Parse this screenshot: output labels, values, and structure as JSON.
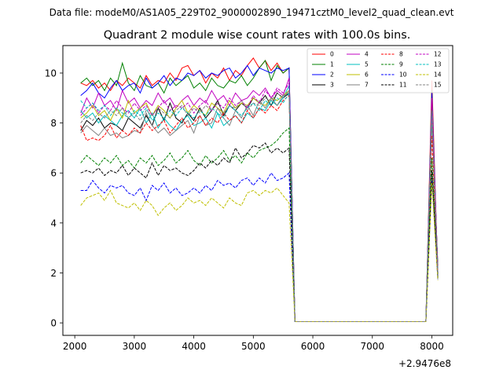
{
  "chart_data": {
    "type": "line",
    "suptitle": "Data file: modeM0/AS1A05_229T02_9000002890_19471cztM0_level2_quad_clean.evt",
    "title": "Quadrant 2 module wise count rates with 100.0s bins.",
    "xlabel": "",
    "ylabel": "",
    "x_offset_label": "+2.9476e8",
    "xlim": [
      1800,
      8350
    ],
    "ylim": [
      -0.5,
      11.1
    ],
    "x_ticks": [
      2000,
      3000,
      4000,
      5000,
      6000,
      7000,
      8000
    ],
    "x_tick_labels": [
      "2000",
      "3000",
      "4000",
      "5000",
      "6000",
      "7000",
      "8000"
    ],
    "y_ticks": [
      0,
      2,
      4,
      6,
      8,
      10
    ],
    "y_tick_labels": [
      "0",
      "2",
      "4",
      "6",
      "8",
      "10"
    ],
    "grid": false,
    "legend_position": "top-right",
    "x": [
      2100,
      2200,
      2300,
      2400,
      2500,
      2600,
      2700,
      2800,
      2900,
      3000,
      3100,
      3200,
      3300,
      3400,
      3500,
      3600,
      3700,
      3800,
      3900,
      4000,
      4100,
      4200,
      4300,
      4400,
      4500,
      4600,
      4700,
      4800,
      4900,
      5000,
      5100,
      5200,
      5300,
      5400,
      5500,
      5600,
      5700,
      5800,
      5900,
      6000,
      6100,
      6200,
      6300,
      6400,
      6500,
      6600,
      6700,
      6800,
      6900,
      7000,
      7100,
      7200,
      7300,
      7400,
      7500,
      7600,
      7700,
      7800,
      7900,
      8000,
      8100
    ],
    "series": [
      {
        "name": "0",
        "color": "#ff0000",
        "dash": "solid",
        "head": [
          9.6,
          9.5,
          9.7,
          9.4,
          9.6,
          9.3,
          9.7,
          9.5,
          9.8,
          9.6,
          9.4,
          9.9,
          9.5,
          9.7,
          9.6,
          10.0,
          9.7,
          10.2,
          10.3,
          9.9,
          10.1,
          9.6,
          10.0,
          9.8,
          10.2,
          9.7,
          10.1,
          9.9,
          10.3,
          10.6,
          10.2,
          10.5,
          10.1,
          10.4,
          10.0
        ],
        "tail": [
          10.2,
          0.05,
          9.7,
          1.9
        ]
      },
      {
        "name": "1",
        "color": "#008000",
        "dash": "solid",
        "head": [
          9.6,
          9.8,
          9.5,
          9.7,
          9.3,
          9.8,
          9.5,
          10.4,
          9.6,
          9.3,
          9.9,
          9.5,
          9.4,
          9.6,
          9.2,
          9.8,
          9.5,
          9.7,
          9.9,
          9.4,
          9.6,
          9.3,
          9.8,
          9.5,
          9.4,
          9.7,
          9.6,
          9.9,
          9.5,
          9.8,
          10.2,
          10.5,
          9.7,
          10.3,
          10.0
        ],
        "tail": [
          10.2,
          0.05,
          9.3,
          1.8
        ]
      },
      {
        "name": "2",
        "color": "#0000ff",
        "dash": "solid",
        "head": [
          9.1,
          9.3,
          9.6,
          9.2,
          9.0,
          9.4,
          9.7,
          9.3,
          9.5,
          9.6,
          9.2,
          9.8,
          9.4,
          9.6,
          9.9,
          9.5,
          9.8,
          9.7,
          10.0,
          9.9,
          10.1,
          9.8,
          10.0,
          9.9,
          10.1,
          10.2,
          9.8,
          10.0,
          10.3,
          9.9,
          10.2,
          10.1,
          10.0,
          10.2,
          10.1
        ],
        "tail": [
          10.2,
          0.05,
          9.2,
          2.0
        ]
      },
      {
        "name": "3",
        "color": "#000000",
        "dash": "solid",
        "head": [
          7.7,
          8.1,
          7.9,
          8.2,
          7.8,
          8.0,
          7.9,
          7.7,
          8.2,
          8.0,
          7.8,
          8.3,
          7.9,
          8.6,
          8.1,
          8.8,
          8.2,
          8.0,
          8.4,
          8.1,
          8.6,
          8.2,
          8.5,
          8.9,
          8.3,
          8.7,
          8.5,
          8.8,
          8.6,
          9.0,
          8.8,
          9.1,
          8.7,
          9.2,
          9.0
        ],
        "tail": [
          9.2,
          0.05,
          8.2,
          2.3
        ]
      },
      {
        "name": "4",
        "color": "#c000c0",
        "dash": "solid",
        "head": [
          8.4,
          9.0,
          8.6,
          9.2,
          8.7,
          8.9,
          8.5,
          9.3,
          8.8,
          9.0,
          8.6,
          8.9,
          8.7,
          9.2,
          8.8,
          9.0,
          8.6,
          8.9,
          9.1,
          8.7,
          9.0,
          8.8,
          9.3,
          8.9,
          9.1,
          8.7,
          9.2,
          8.9,
          9.0,
          9.3,
          9.1,
          9.4,
          9.0,
          9.3,
          9.1
        ],
        "tail": [
          9.8,
          0.05,
          9.0,
          2.0
        ]
      },
      {
        "name": "5",
        "color": "#00bfbf",
        "dash": "solid",
        "head": [
          8.5,
          8.2,
          8.4,
          8.0,
          8.3,
          8.1,
          7.9,
          8.3,
          8.5,
          8.2,
          8.6,
          8.0,
          8.4,
          7.8,
          8.2,
          7.9,
          7.7,
          8.1,
          8.3,
          7.9,
          8.0,
          8.2,
          7.8,
          8.4,
          7.9,
          8.1,
          8.3,
          8.0,
          8.4,
          8.2,
          8.6,
          8.5,
          8.9,
          8.7,
          9.0
        ],
        "tail": [
          9.5,
          0.05,
          8.5,
          2.0
        ]
      },
      {
        "name": "6",
        "color": "#bfbf00",
        "dash": "solid",
        "head": [
          8.2,
          8.4,
          8.7,
          8.3,
          8.5,
          8.1,
          8.6,
          8.2,
          8.9,
          8.4,
          8.6,
          8.8,
          8.3,
          8.7,
          8.5,
          8.2,
          8.6,
          8.9,
          8.4,
          8.7,
          8.5,
          8.3,
          8.8,
          8.6,
          8.4,
          8.9,
          8.6,
          8.8,
          8.7,
          9.0,
          8.8,
          8.7,
          9.0,
          8.9,
          9.1
        ],
        "tail": [
          9.3,
          0.05,
          8.6,
          2.0
        ]
      },
      {
        "name": "7",
        "color": "#808080",
        "dash": "solid",
        "head": [
          7.6,
          7.9,
          7.7,
          7.5,
          7.8,
          7.5,
          7.6,
          7.4,
          7.5,
          7.7,
          7.6,
          8.4,
          7.9,
          7.6,
          7.8,
          7.5,
          7.7,
          7.9,
          8.1,
          7.6,
          8.3,
          7.9,
          8.0,
          8.6,
          8.2,
          7.9,
          8.5,
          8.2,
          8.7,
          8.3,
          8.9,
          8.6,
          9.0,
          8.7,
          9.1
        ],
        "tail": [
          9.2,
          0.05,
          8.3,
          2.2
        ]
      },
      {
        "name": "8",
        "color": "#ff0000",
        "dash": "dashed",
        "head": [
          7.9,
          7.3,
          7.4,
          7.3,
          7.5,
          7.9,
          7.4,
          7.7,
          7.5,
          7.8,
          7.6,
          8.0,
          7.7,
          7.9,
          8.1,
          7.6,
          7.9,
          8.2,
          7.8,
          8.0,
          8.3,
          7.9,
          8.2,
          8.0,
          8.4,
          8.1,
          8.3,
          8.0,
          8.5,
          8.2,
          8.6,
          8.4,
          8.7,
          8.5,
          8.9
        ],
        "tail": [
          9.1,
          0.05,
          7.5,
          1.8
        ]
      },
      {
        "name": "9",
        "color": "#008000",
        "dash": "dashed",
        "head": [
          6.4,
          6.7,
          6.5,
          6.3,
          6.6,
          6.4,
          6.7,
          6.3,
          6.5,
          6.2,
          6.6,
          6.4,
          6.7,
          6.3,
          6.5,
          6.8,
          6.4,
          6.6,
          6.9,
          6.5,
          6.3,
          6.7,
          6.4,
          6.6,
          6.9,
          6.5,
          6.7,
          6.4,
          6.8,
          6.6,
          6.9,
          7.0,
          7.1,
          7.3,
          7.6
        ],
        "tail": [
          7.8,
          0.05,
          6.6,
          1.8
        ]
      },
      {
        "name": "10",
        "color": "#0000ff",
        "dash": "dashed",
        "head": [
          5.3,
          5.3,
          5.7,
          5.4,
          5.2,
          5.5,
          5.4,
          5.5,
          5.2,
          5.1,
          5.4,
          4.9,
          5.5,
          5.3,
          5.6,
          5.2,
          5.4,
          5.1,
          5.2,
          5.4,
          5.2,
          5.5,
          5.3,
          5.7,
          5.5,
          5.6,
          5.4,
          5.7,
          5.8,
          5.5,
          5.8,
          5.6,
          6.0,
          5.7,
          5.8
        ],
        "tail": [
          6.0,
          0.05,
          5.8,
          1.7
        ]
      },
      {
        "name": "11",
        "color": "#000000",
        "dash": "dashed",
        "head": [
          6.0,
          6.1,
          6.0,
          6.2,
          5.9,
          6.1,
          6.0,
          6.3,
          5.9,
          6.2,
          6.0,
          5.8,
          6.4,
          5.9,
          6.3,
          6.1,
          6.2,
          6.0,
          5.9,
          6.1,
          6.4,
          6.2,
          6.5,
          6.3,
          6.6,
          6.4,
          7.0,
          6.6,
          6.8,
          7.1,
          7.0,
          7.2,
          6.8,
          7.0,
          6.8
        ],
        "tail": [
          7.0,
          0.05,
          6.1,
          1.8
        ]
      },
      {
        "name": "12",
        "color": "#c000c0",
        "dash": "dashed",
        "head": [
          8.3,
          8.6,
          8.8,
          8.4,
          8.7,
          8.5,
          8.9,
          8.6,
          8.4,
          8.8,
          8.5,
          8.7,
          8.3,
          8.6,
          8.9,
          8.5,
          8.7,
          8.6,
          8.8,
          8.4,
          8.7,
          8.9,
          8.5,
          8.8,
          8.6,
          9.0,
          8.7,
          8.9,
          8.6,
          9.1,
          8.8,
          9.3,
          9.0,
          9.4,
          9.2
        ],
        "tail": [
          9.6,
          0.05,
          8.8,
          2.0
        ]
      },
      {
        "name": "13",
        "color": "#00bfbf",
        "dash": "dashed",
        "head": [
          8.9,
          8.6,
          8.8,
          8.5,
          8.7,
          8.3,
          8.6,
          8.4,
          8.2,
          8.5,
          8.3,
          8.6,
          8.1,
          8.4,
          8.2,
          8.5,
          8.3,
          8.6,
          8.4,
          8.2,
          8.5,
          8.3,
          8.6,
          8.4,
          8.2,
          8.7,
          8.5,
          8.3,
          8.6,
          8.8,
          8.5,
          8.9,
          8.7,
          9.0,
          8.8
        ],
        "tail": [
          9.2,
          0.05,
          8.4,
          1.9
        ]
      },
      {
        "name": "14",
        "color": "#bfbf00",
        "dash": "dashed",
        "head": [
          4.7,
          5.0,
          5.1,
          5.2,
          4.9,
          5.3,
          4.8,
          4.7,
          4.6,
          4.8,
          4.5,
          4.9,
          4.7,
          4.3,
          4.6,
          4.8,
          4.5,
          4.7,
          5.0,
          4.8,
          4.9,
          4.7,
          5.0,
          4.8,
          4.6,
          5.0,
          4.8,
          4.7,
          5.2,
          5.3,
          5.1,
          5.3,
          5.2,
          5.4,
          5.1
        ],
        "tail": [
          4.8,
          0.05,
          5.6,
          1.7
        ]
      },
      {
        "name": "15",
        "color": "#808080",
        "dash": "dashed",
        "head": [
          8.0,
          8.3,
          8.1,
          8.4,
          8.2,
          8.5,
          8.3,
          8.6,
          8.2,
          8.4,
          8.1,
          8.5,
          8.3,
          8.6,
          8.4,
          8.2,
          8.5,
          8.7,
          8.3,
          8.6,
          8.4,
          8.7,
          8.5,
          8.8,
          8.4,
          8.7,
          8.6,
          8.9,
          8.5,
          8.8,
          8.7,
          9.0,
          8.9,
          9.2,
          9.0
        ],
        "tail": [
          9.3,
          0.05,
          8.5,
          1.9
        ]
      }
    ]
  }
}
